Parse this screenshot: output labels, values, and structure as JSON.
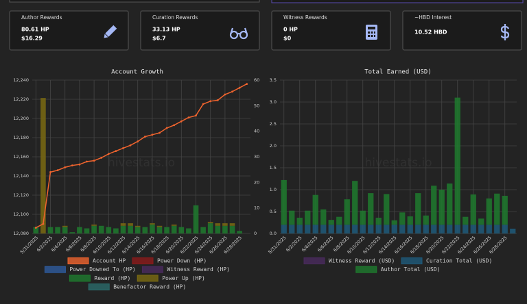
{
  "cards": [
    {
      "title": "Author Rewards",
      "lines": [
        "80.61 HP",
        "$16.29"
      ]
    },
    {
      "title": "Curation Rewards",
      "lines": [
        "33.13 HP",
        "$6.7"
      ]
    },
    {
      "title": "Witness Rewards",
      "lines": [
        "0 HP",
        "$0"
      ]
    },
    {
      "title": "~HBD Interest",
      "lines": [
        "10.52 HBD"
      ]
    }
  ],
  "chart_data": [
    {
      "type": "bar",
      "title": "Account Growth",
      "watermark": "hivestats.io",
      "categories": [
        "5/31/2025",
        null,
        "6/2/2025",
        null,
        "6/4/2025",
        null,
        "6/6/2025",
        null,
        "6/8/2025",
        null,
        "6/10/2025",
        null,
        "6/12/2025",
        null,
        "6/14/2025",
        null,
        "6/16/2025",
        null,
        "6/18/2025",
        null,
        "6/20/2025",
        null,
        "6/22/2025",
        null,
        "6/24/2025",
        null,
        "6/26/2025",
        null,
        "6/28/2025",
        null
      ],
      "ylim": [
        12080,
        12240
      ],
      "yticks": [
        {
          "value": 12080,
          "label": "12,080"
        },
        {
          "value": 12100,
          "label": "12,100"
        },
        {
          "value": 12120,
          "label": "12,120"
        },
        {
          "value": 12140,
          "label": "12,140"
        },
        {
          "value": 12160,
          "label": "12,160"
        },
        {
          "value": 12180,
          "label": "12,180"
        },
        {
          "value": 12200,
          "label": "12,200"
        },
        {
          "value": 12220,
          "label": "12,220"
        },
        {
          "value": 12240,
          "label": "12,240"
        }
      ],
      "y2lim": [
        0,
        60
      ],
      "y2ticks": [
        0,
        10,
        20,
        30,
        40,
        50,
        60
      ],
      "grid": true,
      "series": [
        {
          "name": "Account HP",
          "type": "line",
          "color": "#f0642e",
          "values": [
            12086,
            12090,
            12144,
            12146,
            12149,
            12151,
            12152,
            12155,
            12156,
            12159,
            12163,
            12166,
            12169,
            12172,
            12176,
            12181,
            12183,
            12185,
            12190,
            12193,
            12197,
            12201,
            12203,
            12215,
            12218,
            12219,
            12225,
            12228,
            12232,
            12236
          ]
        },
        {
          "name": "Power Down (HP)",
          "axis": "y2",
          "color": "#8b1a1a",
          "values": [
            0,
            0,
            0,
            0,
            0,
            0,
            0,
            0,
            0,
            0,
            0,
            0,
            0,
            0,
            0,
            0,
            0,
            0,
            0,
            0,
            0,
            0,
            0,
            0,
            0,
            0,
            0,
            0,
            0,
            0
          ]
        },
        {
          "name": "Power Downed To (HP)",
          "axis": "y2",
          "color": "#2e5b9e",
          "values": [
            0,
            0,
            0,
            0,
            0,
            0,
            0,
            0,
            0,
            0,
            0,
            0,
            0,
            0,
            0,
            0,
            0,
            0,
            0,
            0,
            0,
            0,
            0,
            0,
            0,
            0,
            0,
            0,
            0,
            0
          ]
        },
        {
          "name": "Witness Reward (HP)",
          "axis": "y2",
          "color": "#4a2a5e",
          "values": [
            0,
            0,
            0,
            0,
            0,
            0,
            0,
            0,
            0,
            0,
            0,
            0,
            0,
            0,
            0,
            0,
            0,
            0,
            0,
            0,
            0,
            0,
            0,
            0,
            0,
            0,
            0,
            0,
            0,
            0
          ]
        },
        {
          "name": "Reward (HP)",
          "axis": "y2",
          "color": "#1e7a2e",
          "values": [
            2.5,
            0,
            2.5,
            2.5,
            2.5,
            0.5,
            2.5,
            2,
            3,
            3,
            2.5,
            2,
            3,
            3,
            2.5,
            2.5,
            3.5,
            2.5,
            2.5,
            3,
            2.5,
            2,
            11,
            2.5,
            4,
            3,
            3,
            3,
            1,
            0
          ]
        },
        {
          "name": "Power Up (HP)",
          "axis": "y2",
          "color": "#7a6a12",
          "values": [
            0,
            53,
            0,
            0,
            0.5,
            0,
            0,
            0,
            0.5,
            0,
            0,
            0,
            1,
            1,
            0.5,
            0,
            0.5,
            0.5,
            0,
            0.5,
            0,
            0,
            0,
            0,
            0.5,
            1,
            1,
            1,
            0,
            0
          ]
        },
        {
          "name": "Benefactor Reward (HP)",
          "axis": "y2",
          "color": "#2a6a6a",
          "values": [
            0,
            0,
            0,
            0,
            0,
            0,
            0,
            0,
            0,
            0,
            0,
            0,
            0,
            0,
            0,
            0,
            0,
            0,
            0,
            0,
            0,
            0,
            0,
            0,
            0,
            0,
            0,
            0,
            0,
            0
          ]
        }
      ]
    },
    {
      "type": "bar",
      "title": "Total Earned (USD)",
      "watermark": "hivestats.io",
      "categories": [
        "5/31/2025",
        null,
        "6/2/2025",
        null,
        "6/4/2025",
        null,
        "6/6/2025",
        null,
        "6/8/2025",
        null,
        "6/10/2025",
        null,
        "6/12/2025",
        null,
        "6/14/2025",
        null,
        "6/16/2025",
        null,
        "6/18/2025",
        null,
        "6/20/2025",
        null,
        "6/22/2025",
        null,
        "6/24/2025",
        null,
        "6/26/2025",
        null,
        "6/28/2025",
        null
      ],
      "ylim": [
        0,
        3.5
      ],
      "yticks": [
        {
          "value": 0,
          "label": "0.0"
        },
        0.5,
        {
          "value": 1,
          "label": "1.0"
        },
        1.5,
        {
          "value": 2,
          "label": "2.0"
        },
        2.5,
        {
          "value": 3,
          "label": "3.0"
        },
        3.5
      ],
      "grid": true,
      "series": [
        {
          "name": "Witness Reward (USD)",
          "color": "#4a2a5e",
          "values": [
            0,
            0,
            0,
            0,
            0,
            0,
            0,
            0,
            0,
            0,
            0,
            0,
            0,
            0,
            0,
            0,
            0,
            0,
            0,
            0,
            0,
            0,
            0,
            0,
            0,
            0,
            0,
            0,
            0,
            0
          ]
        },
        {
          "name": "Curation Total (USD)",
          "color": "#1e5a7a",
          "values": [
            0.2,
            0.2,
            0.2,
            0.2,
            0.2,
            0.2,
            0.2,
            0.2,
            0.2,
            0.2,
            0.2,
            0.2,
            0.2,
            0.2,
            0.2,
            0.2,
            0.2,
            0.2,
            0.2,
            0.2,
            0.2,
            0.2,
            0.2,
            0.2,
            0.2,
            0.2,
            0.2,
            0.2,
            0.2,
            0.11
          ]
        },
        {
          "name": "Author Total (USD)",
          "color": "#1e7a2e",
          "values": [
            1.02,
            0.32,
            0.16,
            0.32,
            0.68,
            0.35,
            0.11,
            0.18,
            0.58,
            1.0,
            0.32,
            0.72,
            0.16,
            0.7,
            0.1,
            0.28,
            0.19,
            0.72,
            0.21,
            0.89,
            0.8,
            0.94,
            2.9,
            0.18,
            0.69,
            0.14,
            0.6,
            0.71,
            0.66,
            0
          ]
        }
      ]
    }
  ]
}
